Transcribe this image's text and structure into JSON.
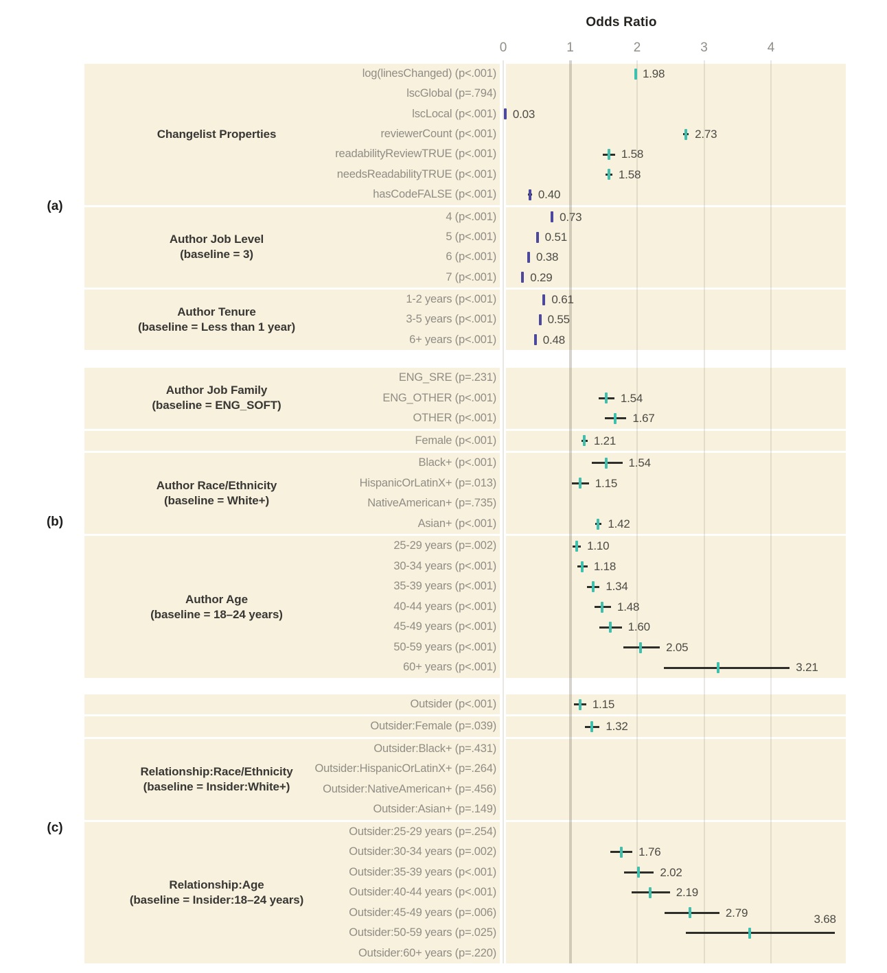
{
  "chart_data": {
    "type": "scatter",
    "subtype": "forest-plot",
    "title": "Odds Ratio",
    "xlabel": "Odds Ratio",
    "xticks": [
      0,
      1,
      2,
      3,
      4
    ],
    "xlim": [
      0,
      5.1
    ],
    "reference_line_x": 1,
    "grid": "vertical-only",
    "colors": {
      "panel_background": "#f8f1de",
      "marker_above_1": "#3fbfae",
      "marker_below_1": "#4c489b",
      "ci_line": "#2d2d2a",
      "row_label": "#8f8d85",
      "group_label": "#383733",
      "value_label": "#4b4a45"
    },
    "panels": [
      {
        "letter": "(a)",
        "sections": [
          {
            "group": [
              "Changelist Properties"
            ],
            "rows": [
              {
                "label": "log(linesChanged) (p<.001)",
                "or": 1.98,
                "lo": 1.97,
                "hi": 1.99,
                "color": "teal",
                "or_label": "1.98"
              },
              {
                "label": "lscGlobal (p=.794)",
                "or": null
              },
              {
                "label": "lscLocal (p<.001)",
                "or": 0.03,
                "lo": 0.005,
                "hi": 0.05,
                "color": "purple",
                "or_label": "0.03"
              },
              {
                "label": "reviewerCount (p<.001)",
                "or": 2.73,
                "lo": 2.69,
                "hi": 2.77,
                "color": "teal",
                "or_label": "2.73"
              },
              {
                "label": "readabilityReviewTRUE (p<.001)",
                "or": 1.58,
                "lo": 1.49,
                "hi": 1.67,
                "color": "teal",
                "or_label": "1.58"
              },
              {
                "label": "needsReadabilityTRUE (p<.001)",
                "or": 1.58,
                "lo": 1.53,
                "hi": 1.63,
                "color": "teal",
                "or_label": "1.58"
              },
              {
                "label": "hasCodeFALSE (p<.001)",
                "or": 0.4,
                "lo": 0.37,
                "hi": 0.43,
                "color": "purple",
                "or_label": "0.40"
              }
            ]
          },
          {
            "group": [
              "Author Job Level",
              "(baseline = 3)"
            ],
            "rows": [
              {
                "label": "4 (p<.001)",
                "or": 0.73,
                "lo": 0.71,
                "hi": 0.75,
                "color": "purple",
                "or_label": "0.73"
              },
              {
                "label": "5 (p<.001)",
                "or": 0.51,
                "lo": 0.49,
                "hi": 0.53,
                "color": "purple",
                "or_label": "0.51"
              },
              {
                "label": "6 (p<.001)",
                "or": 0.38,
                "lo": 0.36,
                "hi": 0.4,
                "color": "purple",
                "or_label": "0.38"
              },
              {
                "label": "7 (p<.001)",
                "or": 0.29,
                "lo": 0.27,
                "hi": 0.31,
                "color": "purple",
                "or_label": "0.29"
              }
            ]
          },
          {
            "group": [
              "Author Tenure",
              "(baseline = Less than 1 year)"
            ],
            "rows": [
              {
                "label": "1-2 years (p<.001)",
                "or": 0.61,
                "lo": 0.59,
                "hi": 0.63,
                "color": "purple",
                "or_label": "0.61"
              },
              {
                "label": "3-5 years (p<.001)",
                "or": 0.55,
                "lo": 0.53,
                "hi": 0.57,
                "color": "purple",
                "or_label": "0.55"
              },
              {
                "label": "6+ years (p<.001)",
                "or": 0.48,
                "lo": 0.46,
                "hi": 0.5,
                "color": "purple",
                "or_label": "0.48"
              }
            ]
          }
        ]
      },
      {
        "letter": "(b)",
        "sections": [
          {
            "group": [
              "Author Job Family",
              "(baseline = ENG_SOFT)"
            ],
            "rows": [
              {
                "label": "ENG_SRE (p=.231)",
                "or": null
              },
              {
                "label": "ENG_OTHER (p<.001)",
                "or": 1.54,
                "lo": 1.43,
                "hi": 1.66,
                "color": "teal",
                "or_label": "1.54"
              },
              {
                "label": "OTHER (p<.001)",
                "or": 1.67,
                "lo": 1.52,
                "hi": 1.84,
                "color": "teal",
                "or_label": "1.67"
              }
            ]
          },
          {
            "group": [],
            "rows": [
              {
                "label": "Female (p<.001)",
                "or": 1.21,
                "lo": 1.17,
                "hi": 1.26,
                "color": "teal",
                "or_label": "1.21"
              }
            ]
          },
          {
            "group": [
              "Author Race/Ethnicity",
              "(baseline = White+)"
            ],
            "rows": [
              {
                "label": "Black+ (p<.001)",
                "or": 1.54,
                "lo": 1.32,
                "hi": 1.78,
                "color": "teal",
                "or_label": "1.54"
              },
              {
                "label": "HispanicOrLatinX+ (p=.013)",
                "or": 1.15,
                "lo": 1.03,
                "hi": 1.28,
                "color": "teal",
                "or_label": "1.15"
              },
              {
                "label": "NativeAmerican+ (p=.735)",
                "or": null
              },
              {
                "label": "Asian+ (p<.001)",
                "or": 1.42,
                "lo": 1.37,
                "hi": 1.47,
                "color": "teal",
                "or_label": "1.42"
              }
            ]
          },
          {
            "group": [
              "Author Age",
              "(baseline = 18–24 years)"
            ],
            "rows": [
              {
                "label": "25-29 years (p=.002)",
                "or": 1.1,
                "lo": 1.04,
                "hi": 1.16,
                "color": "teal",
                "or_label": "1.10"
              },
              {
                "label": "30-34 years (p<.001)",
                "or": 1.18,
                "lo": 1.11,
                "hi": 1.26,
                "color": "teal",
                "or_label": "1.18"
              },
              {
                "label": "35-39 years (p<.001)",
                "or": 1.34,
                "lo": 1.25,
                "hi": 1.44,
                "color": "teal",
                "or_label": "1.34"
              },
              {
                "label": "40-44 years (p<.001)",
                "or": 1.48,
                "lo": 1.36,
                "hi": 1.61,
                "color": "teal",
                "or_label": "1.48"
              },
              {
                "label": "45-49 years (p<.001)",
                "or": 1.6,
                "lo": 1.44,
                "hi": 1.77,
                "color": "teal",
                "or_label": "1.60"
              },
              {
                "label": "50-59 years (p<.001)",
                "or": 2.05,
                "lo": 1.79,
                "hi": 2.34,
                "color": "teal",
                "or_label": "2.05"
              },
              {
                "label": "60+ years (p<.001)",
                "or": 3.21,
                "lo": 2.4,
                "hi": 4.28,
                "color": "teal",
                "or_label": "3.21"
              }
            ]
          }
        ]
      },
      {
        "letter": "(c)",
        "sections": [
          {
            "group": [],
            "rows": [
              {
                "label": "Outsider (p<.001)",
                "or": 1.15,
                "lo": 1.06,
                "hi": 1.24,
                "color": "teal",
                "or_label": "1.15"
              }
            ]
          },
          {
            "group": [],
            "rows": [
              {
                "label": "Outsider:Female (p=.039)",
                "or": 1.32,
                "lo": 1.22,
                "hi": 1.44,
                "color": "teal",
                "or_label": "1.32"
              }
            ]
          },
          {
            "group": [
              "Relationship:Race/Ethnicity",
              "(baseline = Insider:White+)"
            ],
            "rows": [
              {
                "label": "Outsider:Black+ (p=.431)",
                "or": null
              },
              {
                "label": "Outsider:HispanicOrLatinX+ (p=.264)",
                "or": null
              },
              {
                "label": "Outsider:NativeAmerican+ (p=.456)",
                "or": null
              },
              {
                "label": "Outsider:Asian+ (p=.149)",
                "or": null
              }
            ]
          },
          {
            "group": [
              "Relationship:Age",
              "(baseline = Insider:18–24 years)"
            ],
            "rows": [
              {
                "label": "Outsider:25-29 years (p=.254)",
                "or": null
              },
              {
                "label": "Outsider:30-34 years (p=.002)",
                "or": 1.76,
                "lo": 1.6,
                "hi": 1.93,
                "color": "teal",
                "or_label": "1.76"
              },
              {
                "label": "Outsider:35-39 years (p<.001)",
                "or": 2.02,
                "lo": 1.81,
                "hi": 2.25,
                "color": "teal",
                "or_label": "2.02"
              },
              {
                "label": "Outsider:40-44 years (p<.001)",
                "or": 2.19,
                "lo": 1.92,
                "hi": 2.49,
                "color": "teal",
                "or_label": "2.19"
              },
              {
                "label": "Outsider:45-49 years (p=.006)",
                "or": 2.79,
                "lo": 2.41,
                "hi": 3.23,
                "color": "teal",
                "or_label": "2.79"
              },
              {
                "label": "Outsider:50-59 years (p=.025)",
                "or": 3.68,
                "lo": 2.73,
                "hi": 4.95,
                "color": "teal",
                "or_label": "3.68",
                "label_pos": "above"
              },
              {
                "label": "Outsider:60+ years (p=.220)",
                "or": null
              }
            ]
          }
        ]
      }
    ]
  }
}
